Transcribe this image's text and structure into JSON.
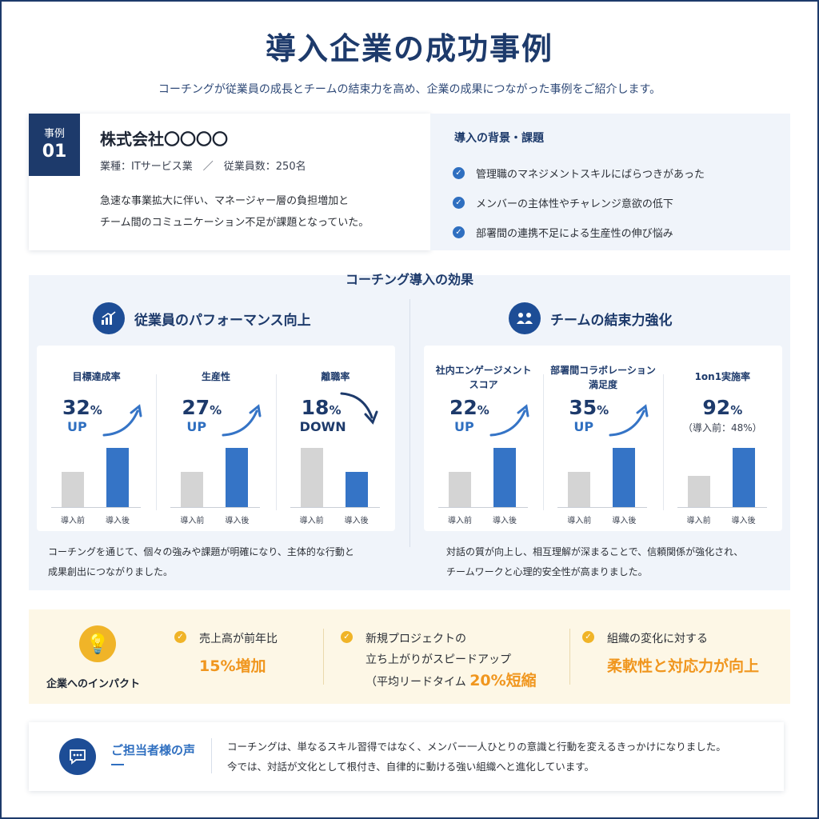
{
  "title": "導入企業の成功事例",
  "subtitle": "コーチングが従業員の成長とチームの結束力を高め、企業の成果につながった事例をご紹介します。",
  "case": {
    "badge_label": "事例",
    "badge_number": "01",
    "company": "株式会社〇〇〇〇",
    "meta": "業種：ITサービス業　／　従業員数：250名",
    "description_lines": [
      "急速な事業拡大に伴い、マネージャー層の負担増加と",
      "チーム間のコミュニケーション不足が課題となっていた。"
    ]
  },
  "background": {
    "title": "導入の背景・課題",
    "items": [
      "管理職のマネジメントスキルにばらつきがあった",
      "メンバーの主体性やチャレンジ意欲の低下",
      "部署間の連携不足による生産性の伸び悩み"
    ]
  },
  "effects": {
    "title": "コーチング導入の効果",
    "left": {
      "heading": "従業員のパフォーマンス向上",
      "icon": "chart-growth-icon",
      "note_lines": [
        "コーチングを通じて、個々の強みや課題が明確になり、主体的な行動と",
        "成果創出につながりました。"
      ]
    },
    "right": {
      "heading": "チームの結束力強化",
      "icon": "team-icon",
      "note_lines": [
        "対話の質が向上し、相互理解が深まることで、信頼関係が強化され、",
        "チームワークと心理的安全性が高まりました。"
      ]
    },
    "x_labels": {
      "before": "導入前",
      "after": "導入後"
    }
  },
  "chart_data": [
    {
      "type": "bar",
      "title": "目標達成率",
      "value": "32",
      "unit": "%",
      "direction": "UP",
      "categories": [
        "導入前",
        "導入後"
      ],
      "values": [
        0.6,
        1.0
      ]
    },
    {
      "type": "bar",
      "title": "生産性",
      "value": "27",
      "unit": "%",
      "direction": "UP",
      "categories": [
        "導入前",
        "導入後"
      ],
      "values": [
        0.6,
        1.0
      ]
    },
    {
      "type": "bar",
      "title": "離職率",
      "value": "18",
      "unit": "%",
      "direction": "DOWN",
      "categories": [
        "導入前",
        "導入後"
      ],
      "values": [
        1.0,
        0.6
      ]
    },
    {
      "type": "bar",
      "title": "社内エンゲージメント\nスコア",
      "value": "22",
      "unit": "%",
      "direction": "UP",
      "categories": [
        "導入前",
        "導入後"
      ],
      "values": [
        0.6,
        1.0
      ]
    },
    {
      "type": "bar",
      "title": "部署間コラボレーション\n満足度",
      "value": "35",
      "unit": "%",
      "direction": "UP",
      "categories": [
        "導入前",
        "導入後"
      ],
      "values": [
        0.6,
        1.0
      ]
    },
    {
      "type": "bar",
      "title": "1on1実施率",
      "value": "92",
      "unit": "%",
      "subtext": "（導入前：48%）",
      "categories": [
        "導入前",
        "導入後"
      ],
      "values": [
        48,
        92
      ]
    }
  ],
  "impact": {
    "label": "企業へのインパクト",
    "items": [
      {
        "text": "売上高が前年比",
        "highlight": "15%増加"
      },
      {
        "text": "新規プロジェクトの\n立ち上がりがスピードアップ\n（平均リードタイム",
        "highlight": "20%短縮"
      },
      {
        "text": "組織の変化に対する",
        "highlight": "柔軟性と対応力が向上"
      }
    ]
  },
  "voice": {
    "title": "ご担当者様の声",
    "lines": [
      "コーチングは、単なるスキル習得ではなく、メンバー一人ひとりの意識と行動を変えるきっかけになりました。",
      "今では、対話が文化として根付き、自律的に動ける強い組織へと進化しています。"
    ]
  },
  "colors": {
    "navy": "#1d3a6b",
    "blue": "#3574c6",
    "gray_bar": "#d4d4d4",
    "orange": "#f0961e",
    "yellow": "#f0b428"
  }
}
